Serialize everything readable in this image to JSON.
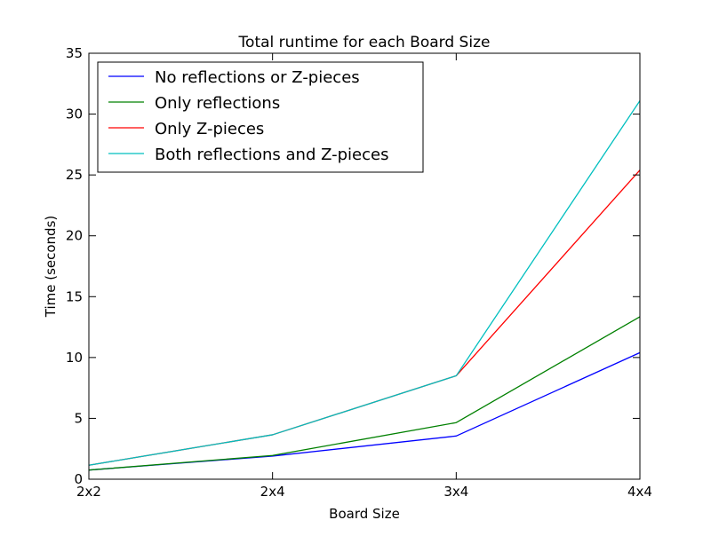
{
  "chart_data": {
    "type": "line",
    "title": "Total runtime for each Board Size",
    "xlabel": "Board Size",
    "ylabel": "Time (seconds)",
    "categories": [
      "2x2",
      "2x4",
      "3x4",
      "4x4"
    ],
    "ylim": [
      0,
      35
    ],
    "yticks": [
      0,
      5,
      10,
      15,
      20,
      25,
      30,
      35
    ],
    "grid": false,
    "legend_position": "top-left",
    "series": [
      {
        "name": "No reflections or Z-pieces",
        "color": "#0000ff",
        "values": [
          0.75,
          1.9,
          3.55,
          10.4
        ]
      },
      {
        "name": "Only reflections",
        "color": "#008000",
        "values": [
          0.75,
          1.95,
          4.65,
          13.35
        ]
      },
      {
        "name": "Only Z-pieces",
        "color": "#ff0000",
        "values": [
          1.15,
          3.65,
          8.5,
          25.4
        ]
      },
      {
        "name": "Both reflections and Z-pieces",
        "color": "#00bfbf",
        "values": [
          1.15,
          3.65,
          8.5,
          31.1
        ]
      }
    ]
  }
}
